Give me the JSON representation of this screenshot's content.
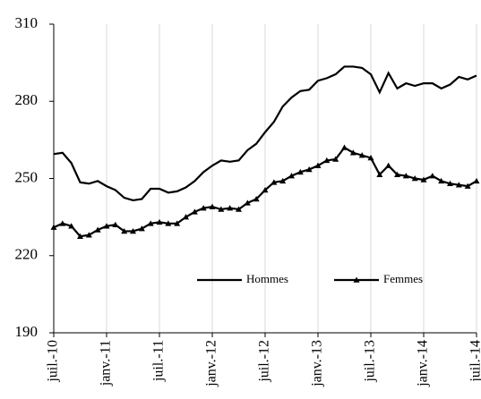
{
  "chart_data": {
    "type": "line",
    "categories": [
      "juil.-10",
      null,
      null,
      null,
      null,
      null,
      "janv.-11",
      null,
      null,
      null,
      null,
      null,
      "juil.-11",
      null,
      null,
      null,
      null,
      null,
      "janv.-12",
      null,
      null,
      null,
      null,
      null,
      "juil.-12",
      null,
      null,
      null,
      null,
      null,
      "janv.-13",
      null,
      null,
      null,
      null,
      null,
      "juil.-13",
      null,
      null,
      null,
      null,
      null,
      "janv.-14",
      null,
      null,
      null,
      null,
      null,
      "juil.-14"
    ],
    "series": [
      {
        "name": "Hommes",
        "color": "#000000",
        "marker": "none",
        "values": [
          259.5,
          260,
          256,
          248.5,
          248,
          249,
          247,
          245.5,
          242.5,
          241.5,
          242,
          246,
          246,
          244.5,
          245,
          246.5,
          249,
          252.5,
          255,
          257,
          256.5,
          257,
          261,
          263.5,
          268,
          272,
          278,
          281.5,
          284,
          284.5,
          288,
          289,
          290.5,
          293.5,
          293.5,
          293,
          290.5,
          283.5,
          291,
          285,
          287,
          286,
          287,
          287,
          285,
          286.5,
          289.5,
          288.5,
          290
        ]
      },
      {
        "name": "Femmes",
        "color": "#000000",
        "marker": "triangle",
        "values": [
          231,
          232.5,
          231.5,
          227.5,
          228,
          230,
          231.5,
          232,
          229.5,
          229.5,
          230.5,
          232.5,
          233,
          232.5,
          232.5,
          235,
          237,
          238.5,
          239,
          238,
          238.5,
          238,
          240.5,
          242,
          245.5,
          248.5,
          249,
          251,
          252.5,
          253.5,
          255,
          257,
          257.5,
          262,
          260,
          259,
          258,
          251.5,
          255,
          251.5,
          251,
          250,
          249.5,
          251,
          249,
          248,
          247.5,
          247,
          249
        ]
      }
    ],
    "ylim": [
      190,
      310
    ],
    "yticks": [
      190,
      220,
      250,
      280,
      310
    ],
    "xgrid": true,
    "legend": "lower right"
  }
}
